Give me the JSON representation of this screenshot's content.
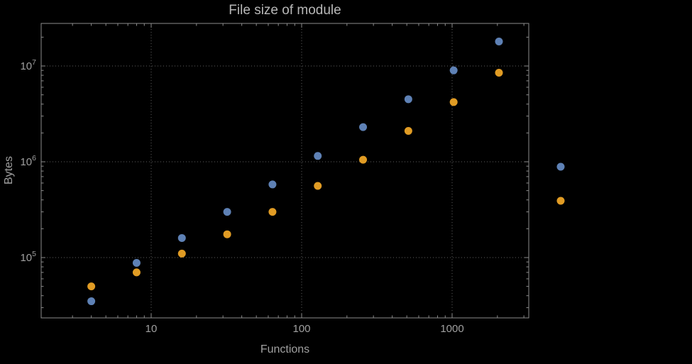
{
  "chart_data": {
    "type": "scatter",
    "title": "File size of module",
    "xlabel": "Functions",
    "ylabel": "Bytes",
    "x_scale": "log",
    "y_scale": "log",
    "xlim": [
      2.6,
      3200
    ],
    "ylim": [
      22000,
      28000000
    ],
    "grid": "dotted",
    "frame": true,
    "x": [
      4,
      8,
      16,
      32,
      64,
      128,
      256,
      512,
      1024,
      2048
    ],
    "series": [
      {
        "name": "blue",
        "color": "#5e81b5",
        "values": [
          35000,
          88000,
          160000,
          300000,
          580000,
          1150000,
          2300000,
          4500000,
          9000000,
          18000000
        ]
      },
      {
        "name": "orange",
        "color": "#e19c24",
        "values": [
          50000,
          70000,
          110000,
          175000,
          300000,
          560000,
          1050000,
          2100000,
          4200000,
          8500000
        ]
      }
    ],
    "x_ticks": [
      {
        "label": "10",
        "value": 10
      },
      {
        "label": "100",
        "value": 100
      },
      {
        "label": "1000",
        "value": 1000
      }
    ],
    "y_ticks": [
      {
        "base": "10",
        "exp": "5",
        "value": 100000
      },
      {
        "base": "10",
        "exp": "6",
        "value": 1000000
      },
      {
        "base": "10",
        "exp": "7",
        "value": 10000000
      }
    ],
    "legend": {
      "position": "outside-right",
      "labels_visible": false,
      "marker_colors": [
        "#5e81b5",
        "#e19c24"
      ]
    }
  },
  "style": {
    "background": "#000000",
    "frame_color": "#8c8c8c",
    "grid_color": "#5f5f5f",
    "text_color": "#a0a0a0",
    "title_color": "#b8b8b8"
  }
}
